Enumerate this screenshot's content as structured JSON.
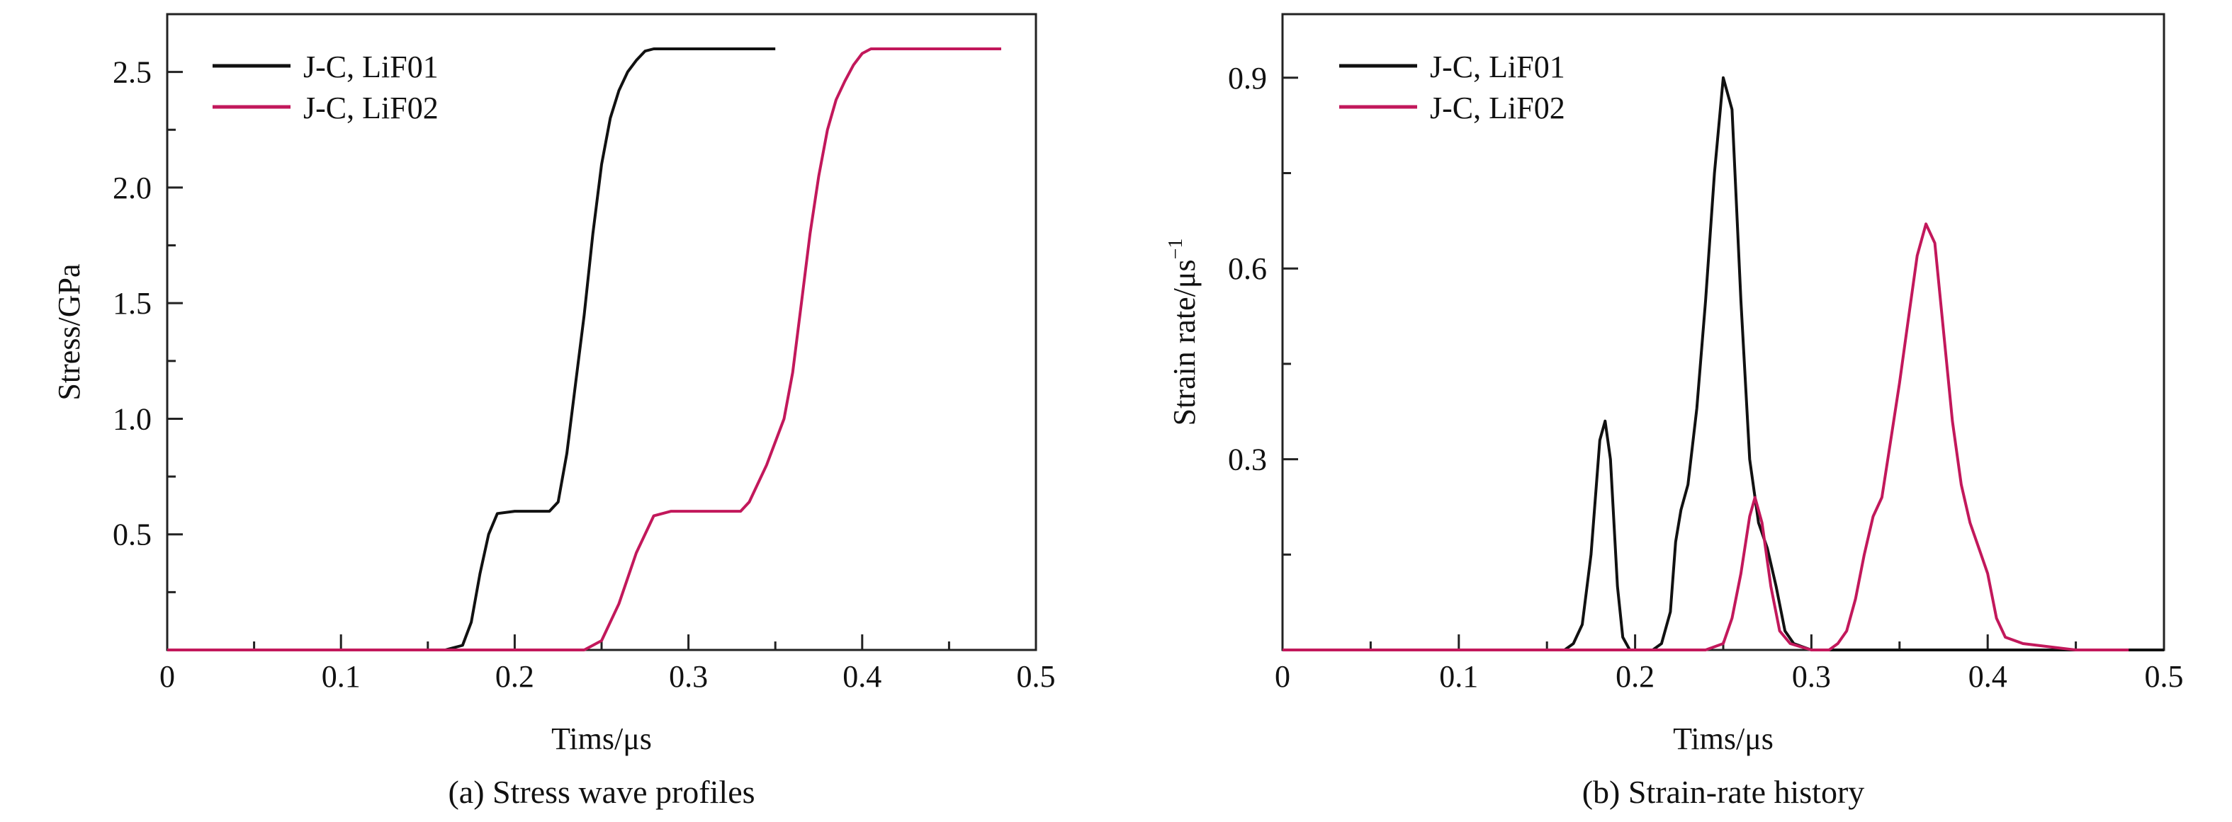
{
  "chart_data": [
    {
      "type": "line",
      "caption": "(a) Stress wave profiles",
      "xlabel": "Tims/μs",
      "ylabel": "Stress/GPa",
      "xlim": [
        0,
        0.5
      ],
      "ylim": [
        0,
        2.75
      ],
      "xticks": [
        0,
        0.1,
        0.2,
        0.3,
        0.4,
        0.5
      ],
      "xtick_labels": [
        "0",
        "0.1",
        "0.2",
        "0.3",
        "0.4",
        "0.5"
      ],
      "yticks": [
        0.5,
        1.0,
        1.5,
        2.0,
        2.5
      ],
      "ytick_labels": [
        "0.5",
        "1.0",
        "1.5",
        "2.0",
        "2.5"
      ],
      "legend_position": "top-left",
      "grid": false,
      "series": [
        {
          "name": "J-C, LiF01",
          "color": "#111111",
          "points": [
            [
              0,
              0
            ],
            [
              0.16,
              0
            ],
            [
              0.17,
              0.02
            ],
            [
              0.175,
              0.12
            ],
            [
              0.18,
              0.33
            ],
            [
              0.185,
              0.5
            ],
            [
              0.19,
              0.59
            ],
            [
              0.2,
              0.6
            ],
            [
              0.22,
              0.6
            ],
            [
              0.225,
              0.64
            ],
            [
              0.23,
              0.85
            ],
            [
              0.235,
              1.15
            ],
            [
              0.24,
              1.45
            ],
            [
              0.245,
              1.8
            ],
            [
              0.25,
              2.1
            ],
            [
              0.255,
              2.3
            ],
            [
              0.26,
              2.42
            ],
            [
              0.265,
              2.5
            ],
            [
              0.27,
              2.55
            ],
            [
              0.275,
              2.59
            ],
            [
              0.28,
              2.6
            ],
            [
              0.35,
              2.6
            ]
          ]
        },
        {
          "name": "J-C, LiF02",
          "color": "#c2185b",
          "points": [
            [
              0,
              0
            ],
            [
              0.24,
              0
            ],
            [
              0.25,
              0.04
            ],
            [
              0.26,
              0.2
            ],
            [
              0.27,
              0.42
            ],
            [
              0.28,
              0.58
            ],
            [
              0.29,
              0.6
            ],
            [
              0.33,
              0.6
            ],
            [
              0.335,
              0.64
            ],
            [
              0.345,
              0.8
            ],
            [
              0.355,
              1.0
            ],
            [
              0.36,
              1.2
            ],
            [
              0.365,
              1.5
            ],
            [
              0.37,
              1.8
            ],
            [
              0.375,
              2.05
            ],
            [
              0.38,
              2.25
            ],
            [
              0.385,
              2.38
            ],
            [
              0.39,
              2.46
            ],
            [
              0.395,
              2.53
            ],
            [
              0.4,
              2.58
            ],
            [
              0.405,
              2.6
            ],
            [
              0.48,
              2.6
            ]
          ]
        }
      ]
    },
    {
      "type": "line",
      "caption": "(b) Strain-rate history",
      "xlabel": "Tims/μs",
      "ylabel": "Strain rate/μs",
      "ylabel_superscript": "−1",
      "xlim": [
        0,
        0.5
      ],
      "ylim": [
        0,
        1.0
      ],
      "xticks": [
        0,
        0.1,
        0.2,
        0.3,
        0.4,
        0.5
      ],
      "xtick_labels": [
        "0",
        "0.1",
        "0.2",
        "0.3",
        "0.4",
        "0.5"
      ],
      "yticks": [
        0.3,
        0.6,
        0.9
      ],
      "ytick_labels": [
        "0.3",
        "0.6",
        "0.9"
      ],
      "legend_position": "top-left",
      "grid": false,
      "series": [
        {
          "name": "J-C, LiF01",
          "color": "#111111",
          "points": [
            [
              0,
              0
            ],
            [
              0.16,
              0
            ],
            [
              0.165,
              0.01
            ],
            [
              0.17,
              0.04
            ],
            [
              0.175,
              0.15
            ],
            [
              0.18,
              0.33
            ],
            [
              0.183,
              0.36
            ],
            [
              0.186,
              0.3
            ],
            [
              0.19,
              0.1
            ],
            [
              0.193,
              0.02
            ],
            [
              0.197,
              0
            ],
            [
              0.21,
              0
            ],
            [
              0.215,
              0.01
            ],
            [
              0.22,
              0.06
            ],
            [
              0.223,
              0.17
            ],
            [
              0.226,
              0.22
            ],
            [
              0.23,
              0.26
            ],
            [
              0.235,
              0.38
            ],
            [
              0.24,
              0.55
            ],
            [
              0.245,
              0.75
            ],
            [
              0.25,
              0.9
            ],
            [
              0.255,
              0.85
            ],
            [
              0.26,
              0.55
            ],
            [
              0.265,
              0.3
            ],
            [
              0.27,
              0.2
            ],
            [
              0.275,
              0.16
            ],
            [
              0.28,
              0.1
            ],
            [
              0.285,
              0.03
            ],
            [
              0.29,
              0.01
            ],
            [
              0.3,
              0
            ],
            [
              0.5,
              0
            ]
          ]
        },
        {
          "name": "J-C, LiF02",
          "color": "#c2185b",
          "points": [
            [
              0,
              0
            ],
            [
              0.24,
              0
            ],
            [
              0.25,
              0.01
            ],
            [
              0.255,
              0.05
            ],
            [
              0.26,
              0.12
            ],
            [
              0.265,
              0.21
            ],
            [
              0.268,
              0.24
            ],
            [
              0.272,
              0.2
            ],
            [
              0.277,
              0.1
            ],
            [
              0.282,
              0.03
            ],
            [
              0.288,
              0.01
            ],
            [
              0.3,
              0
            ],
            [
              0.31,
              0
            ],
            [
              0.315,
              0.01
            ],
            [
              0.32,
              0.03
            ],
            [
              0.325,
              0.08
            ],
            [
              0.33,
              0.15
            ],
            [
              0.335,
              0.21
            ],
            [
              0.34,
              0.24
            ],
            [
              0.345,
              0.33
            ],
            [
              0.35,
              0.42
            ],
            [
              0.355,
              0.52
            ],
            [
              0.36,
              0.62
            ],
            [
              0.365,
              0.67
            ],
            [
              0.37,
              0.64
            ],
            [
              0.375,
              0.5
            ],
            [
              0.38,
              0.36
            ],
            [
              0.385,
              0.26
            ],
            [
              0.39,
              0.2
            ],
            [
              0.395,
              0.16
            ],
            [
              0.4,
              0.12
            ],
            [
              0.405,
              0.05
            ],
            [
              0.41,
              0.02
            ],
            [
              0.42,
              0.01
            ],
            [
              0.45,
              0
            ],
            [
              0.48,
              0
            ]
          ]
        }
      ]
    }
  ]
}
